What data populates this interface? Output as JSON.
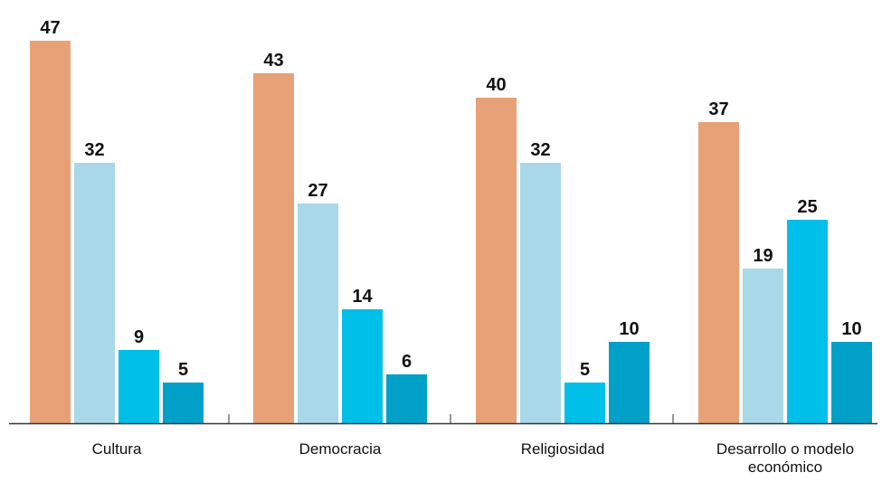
{
  "chart_data": {
    "type": "bar",
    "title": "",
    "xlabel": "",
    "ylabel": "",
    "ylim": [
      0,
      50
    ],
    "grid": false,
    "categories": [
      "Cultura",
      "Democracia",
      "Religiosidad",
      "Desarrollo o modelo económico"
    ],
    "category_lines": [
      [
        "Cultura"
      ],
      [
        "Democracia"
      ],
      [
        "Religiosidad"
      ],
      [
        "Desarrollo o modelo",
        "económico"
      ]
    ],
    "series": [
      {
        "values": [
          47,
          43,
          40,
          37
        ],
        "color": "#e8a077"
      },
      {
        "values": [
          32,
          27,
          32,
          19
        ],
        "color": "#a9d8e8"
      },
      {
        "values": [
          9,
          14,
          5,
          25
        ],
        "color": "#00c0ea"
      },
      {
        "values": [
          5,
          6,
          10,
          10
        ],
        "color": "#00a0c8"
      }
    ]
  }
}
